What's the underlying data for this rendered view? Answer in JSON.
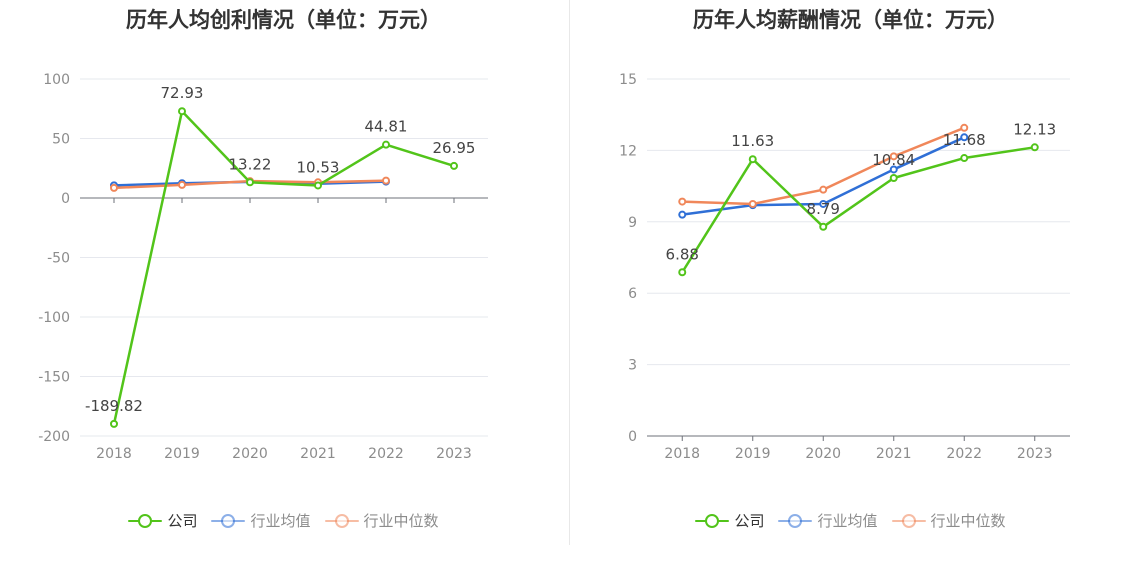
{
  "chart_data": [
    {
      "type": "line",
      "title": "历年人均创利情况（单位：万元）",
      "categories": [
        "2018",
        "2019",
        "2020",
        "2021",
        "2022",
        "2023"
      ],
      "yticks": [
        100,
        50,
        0,
        -50,
        -100,
        -150,
        -200
      ],
      "ylim": [
        -200,
        100
      ],
      "grid": true,
      "legend_position": "bottom",
      "series": [
        {
          "name": "公司",
          "color": "#52c41a",
          "values": [
            -189.82,
            72.93,
            13.22,
            10.53,
            44.81,
            26.95
          ],
          "labels": [
            "-189.82",
            "72.93",
            "13.22",
            "10.53",
            "44.81",
            "26.95"
          ]
        },
        {
          "name": "行业均值",
          "color": "#2f6fd6",
          "values": [
            10.6,
            12.4,
            13.6,
            12.0,
            13.8,
            null
          ]
        },
        {
          "name": "行业中位数",
          "color": "#f0875a",
          "values": [
            8.5,
            11.0,
            14.2,
            13.2,
            14.6,
            null
          ]
        }
      ]
    },
    {
      "type": "line",
      "title": "历年人均薪酬情况（单位：万元）",
      "categories": [
        "2018",
        "2019",
        "2020",
        "2021",
        "2022",
        "2023"
      ],
      "yticks": [
        15,
        12,
        9,
        6,
        3,
        0
      ],
      "ylim": [
        0,
        15
      ],
      "grid": true,
      "legend_position": "bottom",
      "series": [
        {
          "name": "公司",
          "color": "#52c41a",
          "values": [
            6.88,
            11.63,
            8.79,
            10.84,
            11.68,
            12.13
          ],
          "labels": [
            "6.88",
            "11.63",
            "8.79",
            "10.84",
            "11.68",
            "12.13"
          ]
        },
        {
          "name": "行业均值",
          "color": "#2f6fd6",
          "values": [
            9.3,
            9.7,
            9.75,
            11.2,
            12.55,
            null
          ]
        },
        {
          "name": "行业中位数",
          "color": "#f0875a",
          "values": [
            9.85,
            9.75,
            10.35,
            11.75,
            12.95,
            null
          ]
        }
      ]
    }
  ],
  "legend": {
    "items": [
      {
        "label": "公司",
        "color": "#52c41a",
        "active": true
      },
      {
        "label": "行业均值",
        "color": "#2f6fd6",
        "active": false
      },
      {
        "label": "行业中位数",
        "color": "#f0875a",
        "active": false
      }
    ]
  }
}
